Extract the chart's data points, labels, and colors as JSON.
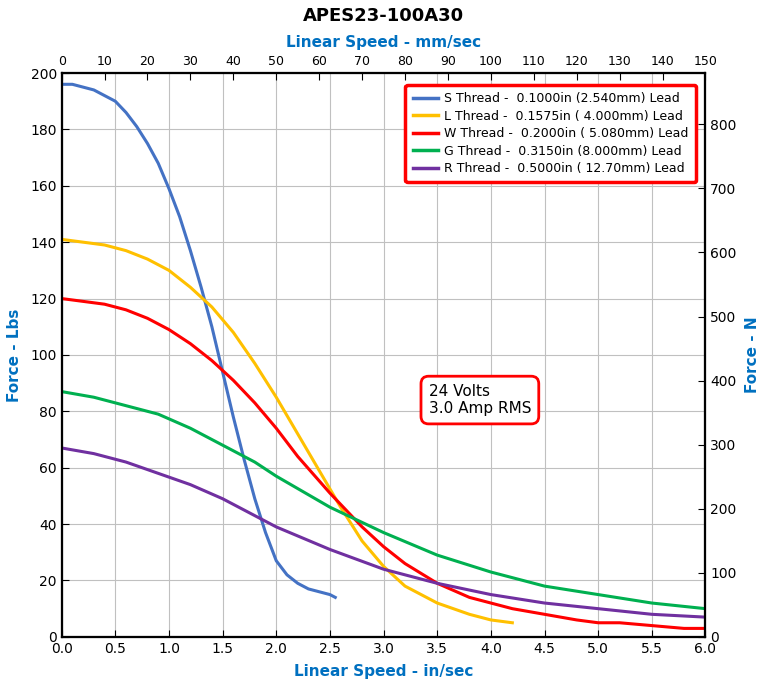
{
  "title": "APES23-100A30",
  "top_xlabel": "Linear Speed - mm/sec",
  "bottom_xlabel": "Linear Speed - in/sec",
  "left_ylabel": "Force - Lbs",
  "right_ylabel": "Force - N",
  "x_inchpersec_max": 6.0,
  "x_mmpersec_max": 150,
  "y_lbs_max": 200,
  "y_lbs_ticks": [
    0,
    20,
    40,
    60,
    80,
    100,
    120,
    140,
    160,
    180,
    200
  ],
  "y_N_max": 880,
  "y_N_ticks": [
    0,
    100,
    200,
    300,
    400,
    500,
    600,
    700,
    800
  ],
  "title_color": "#000000",
  "axis_label_color": "#0070C0",
  "tick_label_color": "#000000",
  "tick_color": "#000000",
  "grid_color": "#C0C0C0",
  "background_color": "#FFFFFF",
  "annotation_voltage": "24 Volts",
  "annotation_amp": "3.0 Amp RMS",
  "legend_entries": [
    {
      "label": "S Thread -  0.1000in (2.540mm) Lead",
      "color": "#4472C4"
    },
    {
      "label": "L Thread -  0.1575in ( 4.000mm) Lead",
      "color": "#FFC000"
    },
    {
      "label": "W Thread -  0.2000in ( 5.080mm) Lead",
      "color": "#FF0000"
    },
    {
      "label": "G Thread -  0.3150in (8.000mm) Lead",
      "color": "#00B050"
    },
    {
      "label": "R Thread -  0.5000in ( 12.70mm) Lead",
      "color": "#7030A0"
    }
  ],
  "curves": {
    "S": {
      "color": "#4472C4",
      "lw": 2.2,
      "x": [
        0.0,
        0.1,
        0.2,
        0.3,
        0.4,
        0.5,
        0.6,
        0.7,
        0.8,
        0.9,
        1.0,
        1.1,
        1.2,
        1.3,
        1.4,
        1.5,
        1.6,
        1.7,
        1.8,
        1.9,
        2.0,
        2.1,
        2.2,
        2.3,
        2.4,
        2.5,
        2.55
      ],
      "y": [
        196,
        196,
        195,
        194,
        192,
        190,
        186,
        181,
        175,
        168,
        159,
        149,
        137,
        124,
        110,
        94,
        78,
        63,
        49,
        37,
        27,
        22,
        19,
        17,
        16,
        15,
        14
      ]
    },
    "L": {
      "color": "#FFC000",
      "lw": 2.2,
      "x": [
        0.0,
        0.2,
        0.4,
        0.6,
        0.8,
        1.0,
        1.2,
        1.4,
        1.6,
        1.8,
        2.0,
        2.2,
        2.4,
        2.6,
        2.8,
        3.0,
        3.2,
        3.5,
        3.8,
        4.0,
        4.2
      ],
      "y": [
        141,
        140,
        139,
        137,
        134,
        130,
        124,
        117,
        108,
        97,
        85,
        72,
        59,
        46,
        34,
        25,
        18,
        12,
        8,
        6,
        5
      ]
    },
    "W": {
      "color": "#FF0000",
      "lw": 2.2,
      "x": [
        0.0,
        0.2,
        0.4,
        0.6,
        0.8,
        1.0,
        1.2,
        1.4,
        1.6,
        1.8,
        2.0,
        2.2,
        2.5,
        2.8,
        3.0,
        3.2,
        3.5,
        3.8,
        4.0,
        4.2,
        4.5,
        4.8,
        5.0,
        5.2,
        5.5,
        5.8,
        6.0
      ],
      "y": [
        120,
        119,
        118,
        116,
        113,
        109,
        104,
        98,
        91,
        83,
        74,
        64,
        51,
        39,
        32,
        26,
        19,
        14,
        12,
        10,
        8,
        6,
        5,
        5,
        4,
        3,
        3
      ]
    },
    "G": {
      "color": "#00B050",
      "lw": 2.2,
      "x": [
        0.0,
        0.3,
        0.6,
        0.9,
        1.2,
        1.5,
        1.8,
        2.0,
        2.5,
        3.0,
        3.5,
        4.0,
        4.5,
        5.0,
        5.5,
        6.0
      ],
      "y": [
        87,
        85,
        82,
        79,
        74,
        68,
        62,
        57,
        46,
        37,
        29,
        23,
        18,
        15,
        12,
        10
      ]
    },
    "R": {
      "color": "#7030A0",
      "lw": 2.2,
      "x": [
        0.0,
        0.3,
        0.6,
        0.9,
        1.2,
        1.5,
        1.8,
        2.0,
        2.5,
        3.0,
        3.5,
        4.0,
        4.5,
        5.0,
        5.5,
        6.0
      ],
      "y": [
        67,
        65,
        62,
        58,
        54,
        49,
        43,
        39,
        31,
        24,
        19,
        15,
        12,
        10,
        8,
        7
      ]
    }
  }
}
